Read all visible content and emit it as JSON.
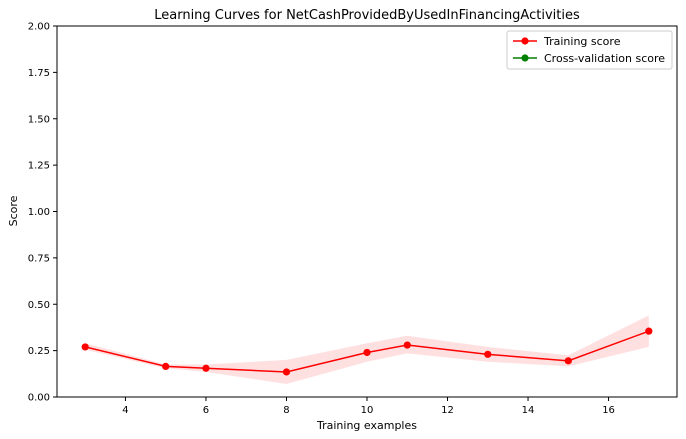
{
  "chart_data": {
    "type": "line",
    "title": "Learning Curves for NetCashProvidedByUsedInFinancingActivities",
    "xlabel": "Training examples",
    "ylabel": "Score",
    "xlim": [
      2.3,
      17.7
    ],
    "ylim": [
      0,
      2.0
    ],
    "xticks": [
      4,
      6,
      8,
      10,
      12,
      14,
      16
    ],
    "yticks": [
      0.0,
      0.25,
      0.5,
      0.75,
      1.0,
      1.25,
      1.5,
      1.75,
      2.0
    ],
    "ytick_labels": [
      "0.00",
      "0.25",
      "0.50",
      "0.75",
      "1.00",
      "1.25",
      "1.50",
      "1.75",
      "2.00"
    ],
    "grid": false,
    "legend_position": "top-right",
    "series": [
      {
        "name": "Training score",
        "color": "#ff0000",
        "band_color": "#ff0000",
        "x": [
          3,
          5,
          6,
          8,
          10,
          11,
          13,
          15,
          17
        ],
        "y": [
          0.27,
          0.165,
          0.155,
          0.135,
          0.24,
          0.28,
          0.23,
          0.195,
          0.355
        ],
        "lower": [
          0.255,
          0.155,
          0.135,
          0.07,
          0.19,
          0.235,
          0.19,
          0.165,
          0.27
        ],
        "upper": [
          0.29,
          0.175,
          0.175,
          0.2,
          0.29,
          0.33,
          0.27,
          0.225,
          0.44
        ]
      },
      {
        "name": "Cross-validation score",
        "color": "#008000",
        "x": [],
        "y": []
      }
    ]
  }
}
